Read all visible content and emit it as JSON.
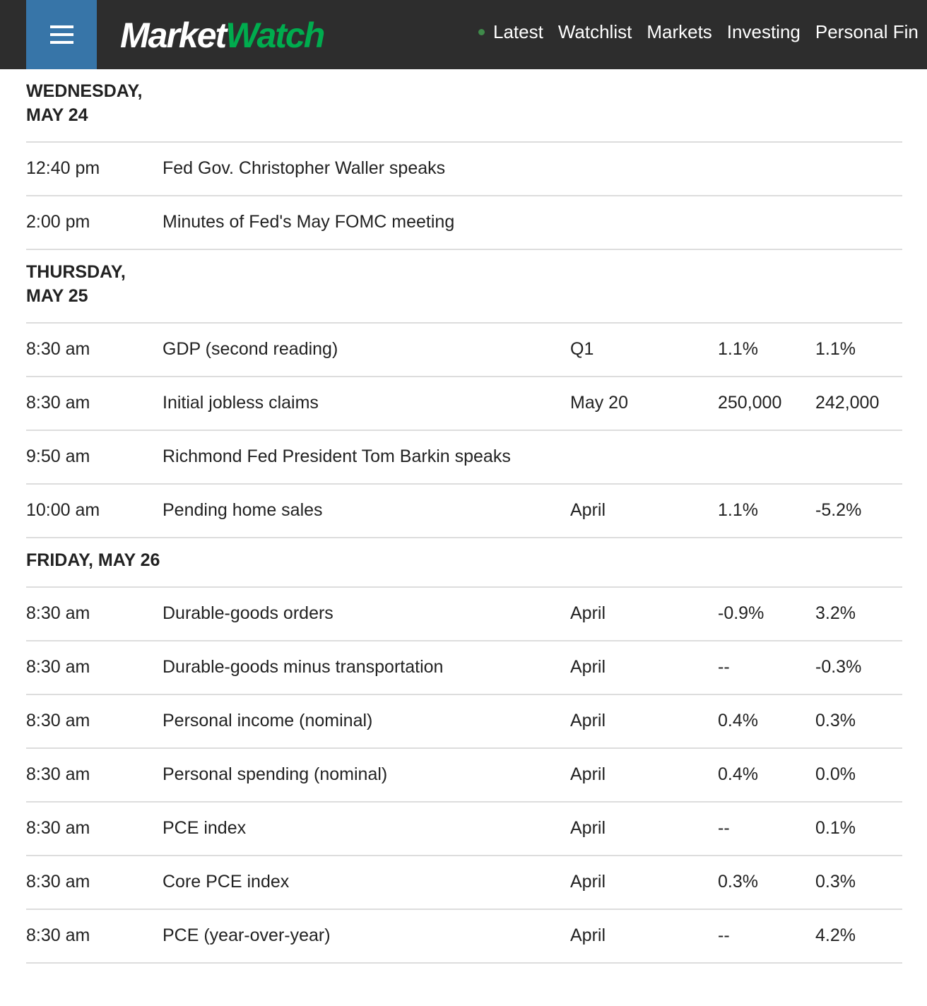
{
  "header": {
    "logo_left": "Market",
    "logo_right": "Watch",
    "nav": [
      "Latest",
      "Watchlist",
      "Markets",
      "Investing",
      "Personal Fin"
    ],
    "colors": {
      "bar": "#2d2d2d",
      "menu": "#3775a8",
      "brand": "#00ac4e"
    }
  },
  "days": [
    {
      "label": "WEDNESDAY, MAY 24",
      "rows": [
        [
          "12:40 pm",
          "Fed Gov. Christopher Waller speaks",
          "",
          "",
          ""
        ],
        [
          "2:00 pm",
          "Minutes of Fed's May FOMC meeting",
          "",
          "",
          ""
        ]
      ]
    },
    {
      "label": "THURSDAY, MAY 25",
      "rows": [
        [
          "8:30 am",
          "GDP (second reading)",
          "Q1",
          "1.1%",
          "1.1%"
        ],
        [
          "8:30 am",
          "Initial jobless claims",
          "May 20",
          "250,000",
          "242,000"
        ],
        [
          "9:50 am",
          "Richmond Fed President Tom Barkin speaks",
          "",
          "",
          ""
        ],
        [
          "10:00 am",
          "Pending home sales",
          "April",
          "1.1%",
          "-5.2%"
        ]
      ]
    },
    {
      "label": "FRIDAY, MAY 26",
      "rows": [
        [
          "8:30 am",
          "Durable-goods orders",
          "April",
          "-0.9%",
          "3.2%"
        ],
        [
          "8:30 am",
          "Durable-goods minus transportation",
          "April",
          "--",
          "-0.3%"
        ],
        [
          "8:30 am",
          "Personal income (nominal)",
          "April",
          "0.4%",
          "0.3%"
        ],
        [
          "8:30 am",
          "Personal spending (nominal)",
          "April",
          "0.4%",
          "0.0%"
        ],
        [
          "8:30 am",
          "PCE index",
          "April",
          "--",
          "0.1%"
        ],
        [
          "8:30 am",
          "Core PCE index",
          "April",
          "0.3%",
          "0.3%"
        ],
        [
          "8:30 am",
          "PCE (year-over-year)",
          "April",
          "--",
          "4.2%"
        ]
      ]
    }
  ]
}
